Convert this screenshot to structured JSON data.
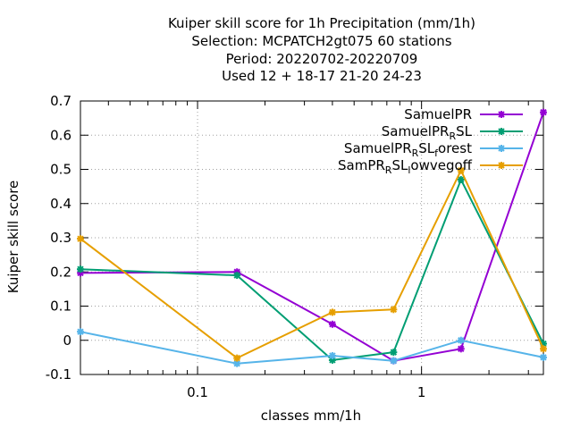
{
  "chart_data": {
    "type": "line",
    "title_lines": [
      "Kuiper skill score  for 1h Precipitation (mm/1h)",
      "Selection: MCPATCH2gt075     60 stations",
      "Period: 20220702-20220709",
      "Used  12 + 18-17 21-20 24-23"
    ],
    "xlabel": "classes mm/1h",
    "ylabel": "Kuiper skill score",
    "x_scale": "log",
    "xlim": [
      0.03,
      3.5
    ],
    "ylim": [
      -0.1,
      0.7
    ],
    "y_ticks": [
      "-0.1",
      "0",
      "0.1",
      "0.2",
      "0.3",
      "0.4",
      "0.5",
      "0.6",
      "0.7"
    ],
    "x_ticks": [
      "0.1",
      "1"
    ],
    "grid": true,
    "legend_position": "top-right",
    "x": [
      0.03,
      0.15,
      0.4,
      0.75,
      1.5,
      3.5
    ],
    "series": [
      {
        "name": "SamuelPR",
        "legend": [
          [
            "SamuelPR",
            ""
          ]
        ],
        "color": "#9400d3",
        "values": [
          0.197,
          0.2,
          0.047,
          -0.06,
          -0.025,
          0.667
        ]
      },
      {
        "name": "SamuelPR_RSL",
        "legend": [
          [
            "SamuelPR",
            ""
          ],
          [
            "R",
            "sub"
          ],
          [
            "SL",
            ""
          ]
        ],
        "color": "#009e73",
        "values": [
          0.208,
          0.19,
          -0.058,
          -0.035,
          0.47,
          -0.01
        ]
      },
      {
        "name": "SamuelPR_RSL_forest",
        "legend": [
          [
            "SamuelPR",
            ""
          ],
          [
            "R",
            "sub"
          ],
          [
            "SL",
            ""
          ],
          [
            "f",
            "sub"
          ],
          [
            "orest",
            ""
          ]
        ],
        "color": "#56b4e9",
        "values": [
          0.025,
          -0.068,
          -0.045,
          -0.06,
          0.0,
          -0.05
        ]
      },
      {
        "name": "SamPR_RSL_lowvegoff",
        "legend": [
          [
            "SamPR",
            ""
          ],
          [
            "R",
            "sub"
          ],
          [
            "SL",
            ""
          ],
          [
            "l",
            "sub"
          ],
          [
            "owvegoff",
            ""
          ]
        ],
        "color": "#e69f00",
        "values": [
          0.297,
          -0.052,
          0.082,
          0.09,
          0.497,
          -0.025
        ]
      }
    ]
  }
}
